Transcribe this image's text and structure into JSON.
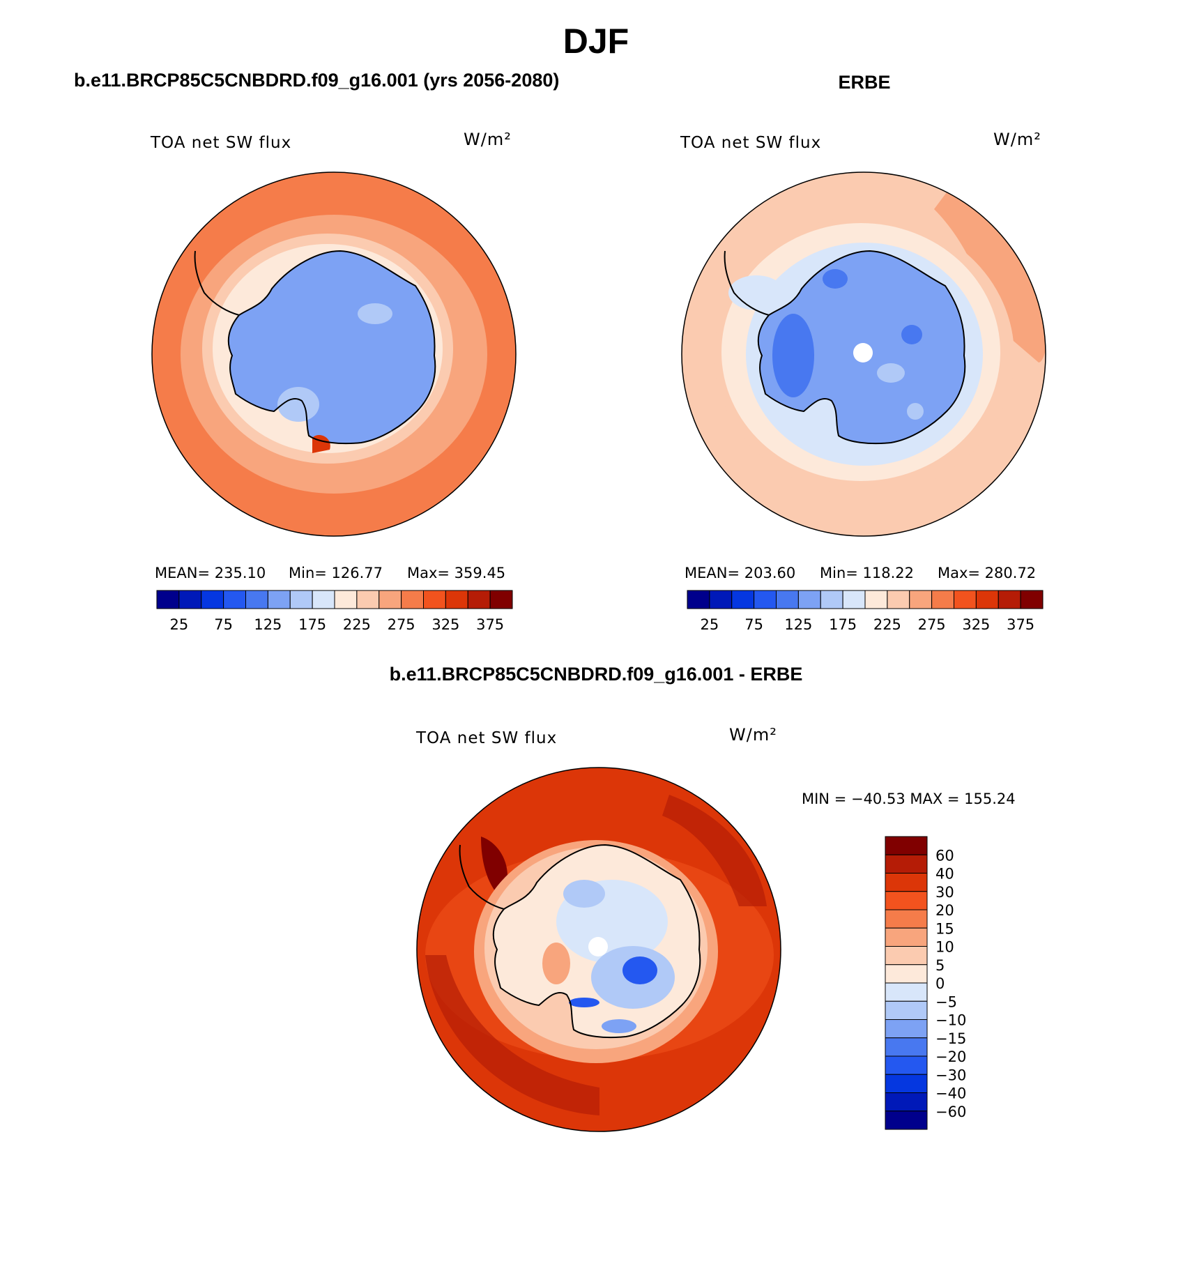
{
  "title": "DJF",
  "panels": [
    {
      "title": "b.e11.BRCP85C5CNBDRD.f09_g16.001 (yrs 2056-2080)",
      "variable": "TOA net SW flux",
      "units": "W/m²",
      "stats": {
        "mean": "MEAN= 235.10",
        "min": "Min= 126.77",
        "max": "Max= 359.45"
      },
      "colorbar_labels": [
        "25",
        "75",
        "125",
        "175",
        "225",
        "275",
        "325",
        "375"
      ]
    },
    {
      "title": "ERBE",
      "variable": "TOA net SW flux",
      "units": "W/m²",
      "stats": {
        "mean": "MEAN= 203.60",
        "min": "Min= 118.22",
        "max": "Max= 280.72"
      },
      "colorbar_labels": [
        "25",
        "75",
        "125",
        "175",
        "225",
        "275",
        "325",
        "375"
      ]
    },
    {
      "title": "b.e11.BRCP85C5CNBDRD.f09_g16.001 - ERBE",
      "variable": "TOA net SW flux",
      "units": "W/m²",
      "stats": {
        "minmax": "MIN = −40.53 MAX = 155.24"
      },
      "colorbar_labels": [
        "60",
        "40",
        "30",
        "20",
        "15",
        "10",
        "5",
        "0",
        "−5",
        "−10",
        "−15",
        "−20",
        "−30",
        "−40",
        "−60"
      ]
    }
  ],
  "colors": {
    "abs_scale": [
      "#00008c",
      "#0019b8",
      "#0537e0",
      "#2458f0",
      "#4878f0",
      "#7da2f4",
      "#b0c9f7",
      "#d8e6fa",
      "#fde9da",
      "#fbcbb0",
      "#f8a57d",
      "#f57c4a",
      "#f2531e",
      "#dc3608",
      "#b51c06",
      "#800000"
    ],
    "diff_scale": [
      "#00008c",
      "#0019b8",
      "#0537e0",
      "#2458f0",
      "#4878f0",
      "#7da2f4",
      "#b0c9f7",
      "#d8e6fa",
      "#fde9da",
      "#fbcbb0",
      "#f8a57d",
      "#f57c4a",
      "#f2531e",
      "#dc3608",
      "#b51c06",
      "#800000"
    ],
    "coastline": "#000000"
  }
}
